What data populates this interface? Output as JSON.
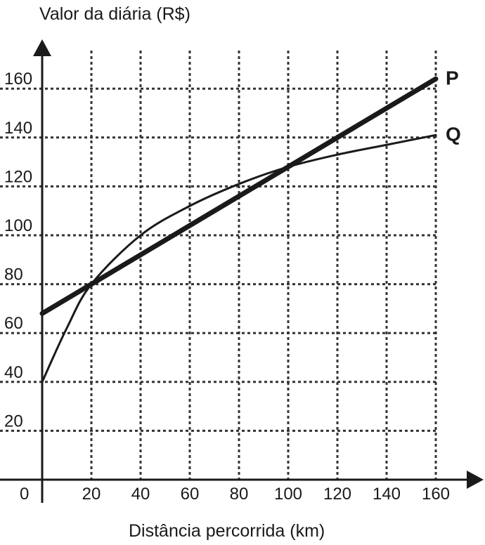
{
  "chart_data": {
    "type": "line",
    "ylabel": "Valor da diária (R$)",
    "xlabel": "Distância percorrida (km)",
    "xlim": [
      0,
      160
    ],
    "ylim": [
      0,
      160
    ],
    "origin_label": "0",
    "x_ticks": [
      20,
      40,
      60,
      80,
      100,
      120,
      140,
      160
    ],
    "y_ticks": [
      20,
      40,
      60,
      80,
      100,
      120,
      140,
      160
    ],
    "grid": true,
    "series": [
      {
        "name": "P",
        "style": "thick straight line",
        "x": [
          0,
          20,
          100,
          160
        ],
        "y": [
          68,
          80,
          128,
          164
        ]
      },
      {
        "name": "Q",
        "style": "thin curve",
        "x": [
          0,
          10,
          20,
          40,
          60,
          80,
          100,
          120,
          140,
          160
        ],
        "y": [
          40,
          62,
          80,
          100,
          112,
          121,
          128,
          133,
          137,
          141
        ]
      }
    ]
  }
}
